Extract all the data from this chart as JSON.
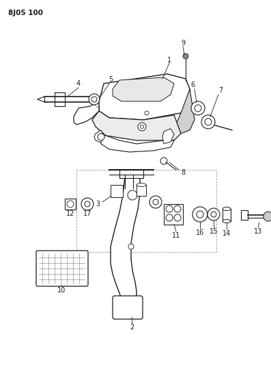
{
  "title": "8J05 100",
  "bg_color": "#ffffff",
  "line_color": "#1a1a1a",
  "fig_width": 3.97,
  "fig_height": 5.33,
  "dpi": 100
}
